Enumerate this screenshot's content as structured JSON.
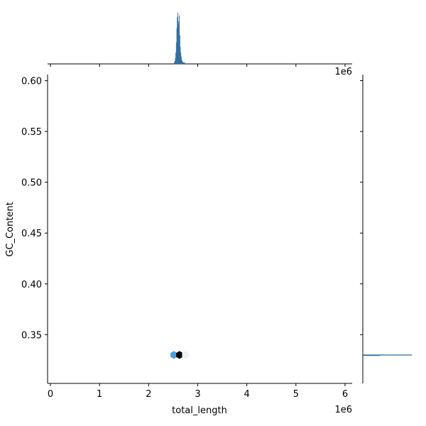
{
  "chart_data": {
    "type": "hexbin",
    "x_label": "total_length",
    "y_label": "GC_Content",
    "x_offset_label": "1e6",
    "xlim": [
      -58000,
      6145000
    ],
    "ylim": [
      0.302,
      0.606
    ],
    "xticks": [
      {
        "value": 0,
        "label": "0"
      },
      {
        "value": 1000000,
        "label": "1"
      },
      {
        "value": 2000000,
        "label": "2"
      },
      {
        "value": 3000000,
        "label": "3"
      },
      {
        "value": 4000000,
        "label": "4"
      },
      {
        "value": 5000000,
        "label": "5"
      },
      {
        "value": 6000000,
        "label": "6"
      }
    ],
    "yticks": [
      0.35,
      {
        "value": 0.4,
        "label": "0.40"
      },
      0.45,
      {
        "value": 0.5,
        "label": "0.50"
      },
      0.55,
      {
        "value": 0.6,
        "label": "0.60"
      }
    ],
    "hexes": {
      "x": [
        2514000,
        2630000,
        2750000
      ],
      "y": [
        0.33,
        0.33,
        0.33
      ],
      "counts": [
        3,
        40,
        1
      ],
      "colors": [
        "#4a9ee8",
        "#000000",
        "#e8f4fc"
      ]
    },
    "marginal_x": {
      "color": "#3a7db4",
      "ylim": [
        0,
        40
      ],
      "bins": [
        2520000,
        2530000,
        2540000,
        2550000,
        2560000,
        2570000,
        2580000,
        2590000,
        2600000,
        2610000,
        2620000,
        2630000,
        2640000,
        2650000,
        2660000,
        2670000,
        2680000,
        2690000,
        2700000,
        2710000,
        2720000,
        2730000,
        2740000
      ],
      "counts": [
        1,
        2,
        4,
        8,
        15,
        25,
        33,
        36,
        30,
        28,
        34,
        20,
        12,
        8,
        5,
        3,
        2,
        1,
        1,
        1,
        0,
        1
      ]
    },
    "marginal_y": {
      "color": "#3a7db4",
      "xlim": [
        0,
        114
      ],
      "bins": [
        0.3295,
        0.3299,
        0.3303
      ],
      "counts": [
        35,
        100
      ]
    }
  }
}
